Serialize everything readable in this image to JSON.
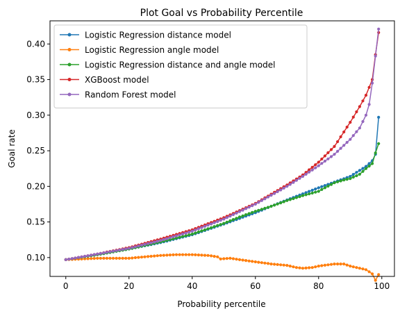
{
  "chart_data": {
    "type": "line",
    "title": "Plot Goal vs Probability Percentile",
    "xlabel": "Probability percentile",
    "ylabel": "Goal rate",
    "xlim": [
      -5,
      104
    ],
    "ylim": [
      0.0735,
      0.4325
    ],
    "xticks": [
      0,
      20,
      40,
      60,
      80,
      100
    ],
    "yticks": [
      0.1,
      0.15,
      0.2,
      0.25,
      0.3,
      0.35,
      0.4
    ],
    "legend_position": "upper-left",
    "grid": false,
    "series": [
      {
        "name": "Logistic Regression distance model",
        "color": "#1f77b4",
        "anchors": [
          [
            0,
            0.097
          ],
          [
            10,
            0.104
          ],
          [
            20,
            0.112
          ],
          [
            30,
            0.121
          ],
          [
            40,
            0.132
          ],
          [
            50,
            0.147
          ],
          [
            60,
            0.163
          ],
          [
            70,
            0.181
          ],
          [
            80,
            0.198
          ],
          [
            85,
            0.206
          ],
          [
            90,
            0.214
          ],
          [
            95,
            0.228
          ],
          [
            97,
            0.236
          ],
          [
            98,
            0.245
          ],
          [
            99,
            0.297
          ]
        ]
      },
      {
        "name": "Logistic Regression angle model",
        "color": "#ff7f0e",
        "anchors": [
          [
            0,
            0.097
          ],
          [
            5,
            0.098
          ],
          [
            10,
            0.099
          ],
          [
            20,
            0.099
          ],
          [
            25,
            0.101
          ],
          [
            30,
            0.103
          ],
          [
            35,
            0.104
          ],
          [
            40,
            0.104
          ],
          [
            45,
            0.103
          ],
          [
            48,
            0.101
          ],
          [
            49,
            0.098
          ],
          [
            52,
            0.099
          ],
          [
            55,
            0.097
          ],
          [
            60,
            0.094
          ],
          [
            65,
            0.091
          ],
          [
            70,
            0.089
          ],
          [
            73,
            0.086
          ],
          [
            75,
            0.085
          ],
          [
            78,
            0.086
          ],
          [
            80,
            0.088
          ],
          [
            85,
            0.091
          ],
          [
            88,
            0.091
          ],
          [
            90,
            0.088
          ],
          [
            93,
            0.085
          ],
          [
            95,
            0.083
          ],
          [
            96,
            0.08
          ],
          [
            97,
            0.077
          ],
          [
            98,
            0.068
          ],
          [
            99,
            0.076
          ]
        ]
      },
      {
        "name": "Logistic Regression distance and angle model",
        "color": "#2ca02c",
        "anchors": [
          [
            0,
            0.097
          ],
          [
            10,
            0.104
          ],
          [
            20,
            0.112
          ],
          [
            30,
            0.122
          ],
          [
            40,
            0.133
          ],
          [
            50,
            0.148
          ],
          [
            55,
            0.157
          ],
          [
            60,
            0.165
          ],
          [
            65,
            0.172
          ],
          [
            70,
            0.18
          ],
          [
            75,
            0.187
          ],
          [
            80,
            0.193
          ],
          [
            82,
            0.198
          ],
          [
            85,
            0.205
          ],
          [
            88,
            0.209
          ],
          [
            90,
            0.211
          ],
          [
            93,
            0.217
          ],
          [
            95,
            0.225
          ],
          [
            97,
            0.232
          ],
          [
            98,
            0.247
          ],
          [
            99,
            0.26
          ]
        ]
      },
      {
        "name": "XGBoost model",
        "color": "#d62728",
        "anchors": [
          [
            0,
            0.097
          ],
          [
            10,
            0.105
          ],
          [
            20,
            0.114
          ],
          [
            30,
            0.126
          ],
          [
            40,
            0.139
          ],
          [
            50,
            0.156
          ],
          [
            60,
            0.176
          ],
          [
            70,
            0.202
          ],
          [
            75,
            0.216
          ],
          [
            80,
            0.234
          ],
          [
            85,
            0.256
          ],
          [
            90,
            0.29
          ],
          [
            93,
            0.312
          ],
          [
            95,
            0.328
          ],
          [
            97,
            0.35
          ],
          [
            98,
            0.385
          ],
          [
            99,
            0.416
          ]
        ]
      },
      {
        "name": "Random Forest model",
        "color": "#9467bd",
        "anchors": [
          [
            0,
            0.097
          ],
          [
            10,
            0.105
          ],
          [
            20,
            0.113
          ],
          [
            30,
            0.124
          ],
          [
            40,
            0.137
          ],
          [
            50,
            0.154
          ],
          [
            60,
            0.175
          ],
          [
            70,
            0.2
          ],
          [
            75,
            0.214
          ],
          [
            80,
            0.229
          ],
          [
            85,
            0.245
          ],
          [
            90,
            0.266
          ],
          [
            93,
            0.282
          ],
          [
            95,
            0.3
          ],
          [
            96,
            0.315
          ],
          [
            97,
            0.345
          ],
          [
            98,
            0.383
          ],
          [
            99,
            0.421
          ]
        ]
      }
    ]
  }
}
